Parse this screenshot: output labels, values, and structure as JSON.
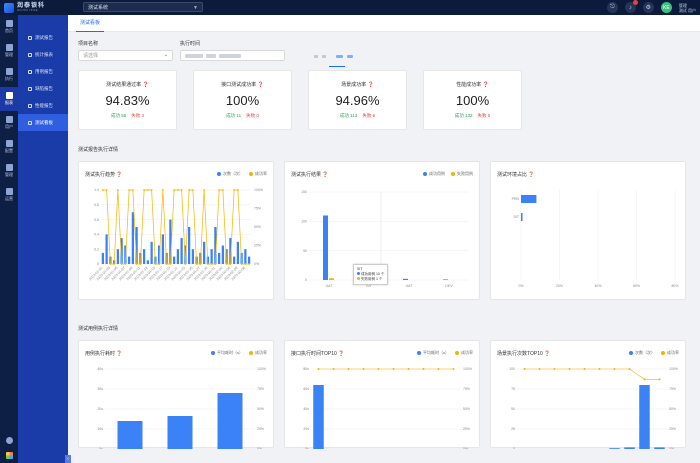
{
  "topbar": {
    "logo_cn": "润泰银科",
    "logo_en": "RUNTAI YINKE",
    "system_select": "测试系统",
    "user_avatar": "KE",
    "user_name": "管理",
    "user_role": "测试 用户"
  },
  "rail": [
    {
      "label": "首页",
      "active": false
    },
    {
      "label": "管理",
      "active": false
    },
    {
      "label": "执行",
      "active": false
    },
    {
      "label": "报表",
      "active": true
    },
    {
      "label": "用户",
      "active": false
    },
    {
      "label": "配置",
      "active": false
    },
    {
      "label": "管理",
      "active": false
    },
    {
      "label": "运营",
      "active": false
    }
  ],
  "submenu": [
    {
      "label": "测试报告",
      "active": false
    },
    {
      "label": "统计报表",
      "active": false
    },
    {
      "label": "用例报告",
      "active": false
    },
    {
      "label": "缺陷报告",
      "active": false
    },
    {
      "label": "性能报告",
      "active": false
    },
    {
      "label": "测试看板",
      "active": true
    }
  ],
  "tab": "测试看板",
  "filters": {
    "project_label": "项目名称",
    "project_placeholder": "请选择",
    "date_label": "执行时间"
  },
  "stats": [
    {
      "title": "测试结果通过率",
      "value": "94.83%",
      "ok": "成功 55",
      "fail": "失败 3"
    },
    {
      "title": "接口测试成功率",
      "value": "100%",
      "ok": "成功 11",
      "fail": "失败 0"
    },
    {
      "title": "场景成功率",
      "value": "94.96%",
      "ok": "成功 113",
      "fail": "失败 6"
    },
    {
      "title": "性能成功率",
      "value": "100%",
      "ok": "成功 132",
      "fail": "失败 0"
    }
  ],
  "section1": "测试报告执行详情",
  "section2": "测试用例执行详情",
  "colors": {
    "bar": "#3b82f6",
    "line": "#f5b400"
  },
  "chart_data": [
    {
      "type": "bar",
      "title": "测试执行趋势",
      "legend": [
        "次数（次）",
        "成功率"
      ],
      "y_ticks": [
        "1.0",
        "0.8",
        "0.6",
        "0.4",
        "0.2",
        "0"
      ],
      "y2_ticks": [
        "100%",
        "75%",
        "50%",
        "25%",
        "0%"
      ],
      "categories": [
        "2023-01-01",
        "2023-01-02",
        "2023-01-03",
        "2023-01-04",
        "2023-01-05",
        "2023-01-06",
        "2023-01-07",
        "2023-01-08",
        "2023-01-09",
        "2023-01-10",
        "2023-01-11",
        "2023-01-12",
        "2023-01-13",
        "2023-01-14",
        "2023-01-15",
        "2023-01-16",
        "2023-01-17",
        "2023-01-18",
        "2023-01-19",
        "2023-01-20",
        "2023-01-21",
        "2023-01-22",
        "2023-01-23",
        "2023-01-24",
        "2023-01-25",
        "2023-01-26",
        "2023-01-27",
        "2023-01-28",
        "2023-01-29",
        "2023-01-30",
        "2023-01-31",
        "2023-02-01",
        "2023-02-02",
        "2023-02-03",
        "2023-02-04",
        "2023-02-05",
        "2023-02-06",
        "2023-02-07",
        "2023-02-08",
        "2023-02-09"
      ],
      "series": [
        {
          "name": "次数（次）",
          "values": [
            0.15,
            0.4,
            0.1,
            0.05,
            0.2,
            0.35,
            0.25,
            0.1,
            0.7,
            0.5,
            0.15,
            0.2,
            0.05,
            0.3,
            0.1,
            0.25,
            0.4,
            0.15,
            0.6,
            0.1,
            0.2,
            0.35,
            0.25,
            0.5,
            0.2,
            0.1,
            0.15,
            0.3,
            0.1,
            0.2,
            0.5,
            0.15,
            0.25,
            0.2,
            0.35,
            0.1,
            0.3,
            0.15,
            0.2,
            0.1
          ]
        },
        {
          "name": "成功率",
          "values": [
            100,
            100,
            0,
            0,
            100,
            0,
            0,
            100,
            100,
            0,
            0,
            100,
            100,
            100,
            0,
            0,
            100,
            0,
            0,
            100,
            100,
            100,
            0,
            100,
            100,
            0,
            0,
            100,
            0,
            0,
            0,
            100,
            100,
            0,
            0,
            100,
            100,
            0,
            0,
            0
          ]
        }
      ]
    },
    {
      "type": "bar",
      "title": "测试执行结果",
      "legend": [
        "成功用例",
        "失败用例"
      ],
      "y_ticks": [
        "150",
        "100",
        "50",
        "0"
      ],
      "categories": [
        "UAT",
        "SIT",
        "UAT",
        "DEV"
      ],
      "series": [
        {
          "name": "成功用例",
          "values": [
            110,
            10,
            2,
            1
          ]
        },
        {
          "name": "失败用例",
          "values": [
            3,
            1,
            0,
            0
          ]
        }
      ],
      "tooltip": {
        "title": "SIT",
        "line1": "成功用例 10 个",
        "line2": "失败用例 1 个"
      }
    },
    {
      "type": "bar",
      "title": "测试环境占比",
      "x_ticks": [
        "0%",
        "20%",
        "40%",
        "60%",
        "80%"
      ],
      "categories": [
        "PRD",
        "SIT"
      ],
      "values": [
        10,
        1
      ]
    },
    {
      "type": "bar",
      "title": "用例执行耗时",
      "legend": [
        "平均耗时（s）",
        "成功率"
      ],
      "y_ticks": [
        "40s",
        "30s",
        "20s",
        "10s",
        "0s"
      ],
      "y2_ticks": [
        "100%",
        "75%",
        "50%",
        "25%",
        "0%"
      ],
      "categories": [
        "A",
        "B",
        "C"
      ],
      "values": [
        14,
        16.5,
        28
      ]
    },
    {
      "type": "bar",
      "title": "接口执行时间TOP10",
      "legend": [
        "平均耗时（s）",
        "成功率"
      ],
      "y_ticks": [
        "80s",
        "60s",
        "40s",
        "20s",
        "0s"
      ],
      "y2_ticks": [
        "100%",
        "75%",
        "50%",
        "25%",
        "0%"
      ],
      "categories": [
        "a",
        "b",
        "c",
        "d",
        "e",
        "f",
        "g",
        "h",
        "i",
        "j"
      ],
      "values": [
        64,
        0,
        0,
        0,
        0,
        0,
        0,
        0,
        0,
        0
      ],
      "line": [
        100,
        100,
        100,
        100,
        100,
        100,
        100,
        100,
        100,
        100
      ]
    },
    {
      "type": "bar",
      "title": "场景执行次数TOP10",
      "legend": [
        "次数（次）",
        "成功率"
      ],
      "y_ticks": [
        "100",
        "75",
        "50",
        "25",
        "0"
      ],
      "y2_ticks": [
        "100%",
        "75%",
        "50%",
        "25%",
        "0%"
      ],
      "categories": [
        "a",
        "b",
        "c",
        "d",
        "e",
        "f",
        "g",
        "h",
        "i",
        "j"
      ],
      "values": [
        0,
        0,
        0,
        0,
        0,
        0,
        1,
        2,
        80,
        2
      ],
      "line": [
        100,
        100,
        100,
        100,
        100,
        100,
        100,
        100,
        87,
        87
      ]
    }
  ]
}
